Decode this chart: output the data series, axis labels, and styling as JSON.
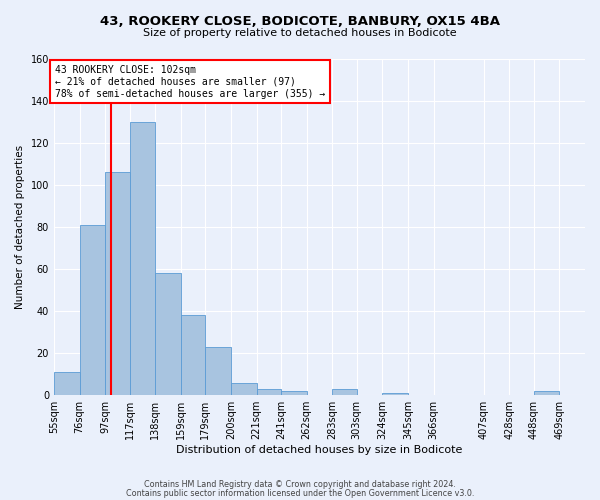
{
  "title_line1": "43, ROOKERY CLOSE, BODICOTE, BANBURY, OX15 4BA",
  "title_line2": "Size of property relative to detached houses in Bodicote",
  "xlabel": "Distribution of detached houses by size in Bodicote",
  "ylabel": "Number of detached properties",
  "bin_edges": [
    55,
    76,
    97,
    117,
    138,
    159,
    179,
    200,
    221,
    241,
    262,
    283,
    303,
    324,
    345,
    366,
    407,
    428,
    448,
    469
  ],
  "bin_labels": [
    "55sqm",
    "76sqm",
    "97sqm",
    "117sqm",
    "138sqm",
    "159sqm",
    "179sqm",
    "200sqm",
    "221sqm",
    "241sqm",
    "262sqm",
    "283sqm",
    "303sqm",
    "324sqm",
    "345sqm",
    "366sqm",
    "407sqm",
    "428sqm",
    "448sqm",
    "469sqm"
  ],
  "counts": [
    11,
    81,
    106,
    130,
    58,
    38,
    23,
    6,
    3,
    2,
    0,
    3,
    0,
    1,
    0,
    0,
    0,
    0,
    2,
    0
  ],
  "bar_color": "#a8c4e0",
  "bar_edge_color": "#5b9bd5",
  "vline_x": 102,
  "vline_color": "red",
  "annotation_line1": "43 ROOKERY CLOSE: 102sqm",
  "annotation_line2": "← 21% of detached houses are smaller (97)",
  "annotation_line3": "78% of semi-detached houses are larger (355) →",
  "annotation_box_color": "white",
  "annotation_box_edge": "red",
  "ylim": [
    0,
    160
  ],
  "yticks": [
    0,
    20,
    40,
    60,
    80,
    100,
    120,
    140,
    160
  ],
  "background_color": "#eaf0fb",
  "grid_color": "white",
  "footer_line1": "Contains HM Land Registry data © Crown copyright and database right 2024.",
  "footer_line2": "Contains public sector information licensed under the Open Government Licence v3.0."
}
